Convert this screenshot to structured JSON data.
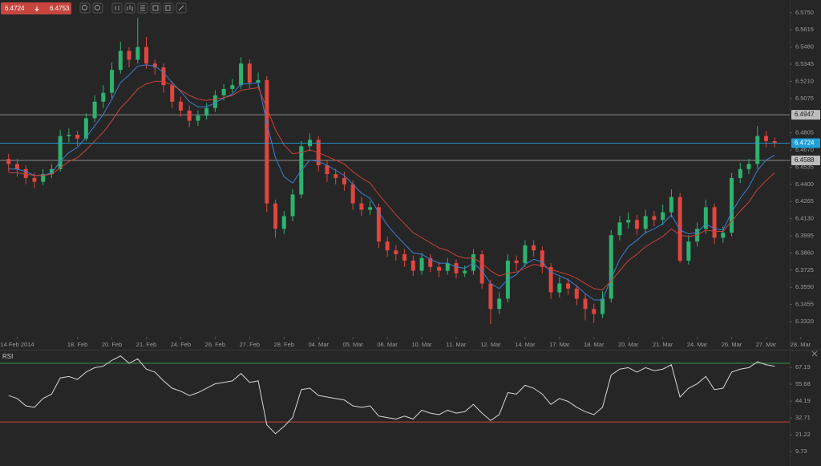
{
  "toolbar": {
    "bid": 6.4724,
    "ask": 6.4753
  },
  "chart_data": [
    {
      "type": "candlestick",
      "x": [
        0,
        1,
        2,
        3,
        4,
        5,
        6,
        7,
        8,
        9,
        10,
        11,
        12,
        13,
        14,
        15,
        16,
        17,
        18,
        19,
        20,
        21,
        22,
        23,
        24,
        25,
        26,
        27,
        28,
        29,
        30,
        31,
        32,
        33,
        34,
        35,
        36,
        37,
        38,
        39,
        40,
        41,
        42,
        43,
        44,
        45,
        46,
        47,
        48,
        49,
        50,
        51,
        52,
        53,
        54,
        55,
        56,
        57,
        58,
        59,
        60,
        61,
        62,
        63,
        64,
        65,
        66,
        67,
        68,
        69,
        70,
        71,
        72,
        73,
        74,
        75,
        76,
        77,
        78,
        79,
        80,
        81,
        82,
        83,
        84,
        85,
        86,
        87,
        88,
        89
      ],
      "open": [
        6.46,
        6.456,
        6.452,
        6.445,
        6.442,
        6.448,
        6.452,
        6.478,
        6.479,
        6.476,
        6.492,
        6.505,
        6.512,
        6.53,
        6.545,
        6.538,
        6.548,
        6.535,
        6.532,
        6.518,
        6.505,
        6.498,
        6.49,
        6.494,
        6.5,
        6.51,
        6.515,
        6.518,
        6.535,
        6.52,
        6.522,
        6.425,
        6.405,
        6.415,
        6.432,
        6.47,
        6.475,
        6.455,
        6.448,
        6.445,
        6.44,
        6.425,
        6.42,
        6.422,
        6.395,
        6.388,
        6.385,
        6.38,
        6.372,
        6.382,
        6.375,
        6.372,
        6.378,
        6.37,
        6.372,
        6.385,
        6.362,
        6.342,
        6.35,
        6.38,
        6.378,
        6.392,
        6.388,
        6.375,
        6.355,
        6.362,
        6.358,
        6.35,
        6.342,
        6.338,
        6.35,
        6.4,
        6.41,
        6.412,
        6.405,
        6.415,
        6.412,
        6.418,
        6.43,
        6.38,
        6.395,
        6.405,
        6.422,
        6.398,
        6.402,
        6.445,
        6.452,
        6.456,
        6.478,
        6.474
      ],
      "high": [
        6.464,
        6.46,
        6.455,
        6.449,
        6.452,
        6.456,
        6.483,
        6.484,
        6.482,
        6.496,
        6.51,
        6.518,
        6.536,
        6.552,
        6.548,
        6.571,
        6.556,
        6.538,
        6.535,
        6.521,
        6.509,
        6.502,
        6.498,
        6.504,
        6.514,
        6.519,
        6.523,
        6.54,
        6.538,
        6.528,
        6.525,
        6.428,
        6.419,
        6.436,
        6.474,
        6.48,
        6.478,
        6.459,
        6.452,
        6.45,
        6.443,
        6.43,
        6.427,
        6.425,
        6.399,
        6.392,
        6.389,
        6.384,
        6.386,
        6.385,
        6.379,
        6.382,
        6.381,
        6.376,
        6.389,
        6.388,
        6.365,
        6.355,
        6.385,
        6.384,
        6.396,
        6.396,
        6.391,
        6.378,
        6.367,
        6.366,
        6.361,
        6.354,
        6.346,
        6.356,
        6.404,
        6.415,
        6.418,
        6.416,
        6.42,
        6.419,
        6.424,
        6.436,
        6.433,
        6.4,
        6.41,
        6.428,
        6.425,
        6.407,
        6.449,
        6.457,
        6.46,
        6.486,
        6.482,
        6.477
      ],
      "low": [
        6.45,
        6.446,
        6.44,
        6.437,
        6.439,
        6.445,
        6.45,
        6.473,
        6.47,
        6.474,
        6.489,
        6.5,
        6.508,
        6.527,
        6.532,
        6.535,
        6.531,
        6.526,
        6.512,
        6.5,
        6.493,
        6.485,
        6.486,
        6.491,
        6.497,
        6.506,
        6.512,
        6.515,
        6.515,
        6.516,
        6.418,
        6.398,
        6.401,
        6.411,
        6.429,
        6.466,
        6.45,
        6.442,
        6.44,
        6.435,
        6.42,
        6.415,
        6.416,
        6.39,
        6.383,
        6.38,
        6.375,
        6.368,
        6.369,
        6.371,
        6.367,
        6.369,
        6.366,
        6.367,
        6.369,
        6.358,
        6.33,
        6.338,
        6.347,
        6.372,
        6.375,
        6.383,
        6.37,
        6.35,
        6.351,
        6.353,
        6.345,
        6.333,
        6.331,
        6.335,
        6.347,
        6.396,
        6.405,
        6.4,
        6.401,
        6.407,
        6.408,
        6.414,
        6.378,
        6.377,
        6.391,
        6.401,
        6.393,
        6.394,
        6.399,
        6.441,
        6.448,
        6.452,
        6.469,
        6.469
      ],
      "close": [
        6.456,
        6.452,
        6.445,
        6.442,
        6.448,
        6.452,
        6.478,
        6.479,
        6.476,
        6.492,
        6.505,
        6.512,
        6.53,
        6.545,
        6.538,
        6.548,
        6.535,
        6.532,
        6.518,
        6.505,
        6.498,
        6.49,
        6.494,
        6.5,
        6.51,
        6.515,
        6.518,
        6.535,
        6.52,
        6.522,
        6.425,
        6.405,
        6.415,
        6.432,
        6.47,
        6.475,
        6.455,
        6.448,
        6.445,
        6.44,
        6.425,
        6.42,
        6.422,
        6.395,
        6.388,
        6.385,
        6.38,
        6.372,
        6.382,
        6.375,
        6.372,
        6.378,
        6.37,
        6.372,
        6.385,
        6.362,
        6.342,
        6.35,
        6.38,
        6.378,
        6.392,
        6.388,
        6.375,
        6.355,
        6.362,
        6.358,
        6.35,
        6.342,
        6.338,
        6.35,
        6.4,
        6.41,
        6.412,
        6.405,
        6.415,
        6.412,
        6.418,
        6.43,
        6.38,
        6.395,
        6.405,
        6.422,
        6.398,
        6.402,
        6.445,
        6.452,
        6.456,
        6.478,
        6.474,
        6.4724
      ],
      "up_color": "#2db36f",
      "down_color": "#e0463e",
      "lines": [
        {
          "color": "#3b7fd4",
          "values": [
            6.452,
            6.452,
            6.45,
            6.447,
            6.447,
            6.449,
            6.458,
            6.465,
            6.469,
            6.477,
            6.486,
            6.495,
            6.507,
            6.52,
            6.526,
            6.533,
            6.534,
            6.533,
            6.528,
            6.52,
            6.513,
            6.505,
            6.501,
            6.501,
            6.504,
            6.508,
            6.511,
            6.519,
            6.519,
            6.52,
            6.488,
            6.461,
            6.446,
            6.441,
            6.451,
            6.459,
            6.458,
            6.455,
            6.451,
            6.447,
            6.44,
            6.433,
            6.429,
            6.418,
            6.408,
            6.4,
            6.393,
            6.386,
            6.385,
            6.381,
            6.378,
            6.378,
            6.375,
            6.374,
            6.378,
            6.372,
            6.362,
            6.358,
            6.365,
            6.369,
            6.377,
            6.381,
            6.379,
            6.371,
            6.368,
            6.365,
            6.36,
            6.354,
            6.349,
            6.349,
            6.366,
            6.381,
            6.391,
            6.396,
            6.402,
            6.405,
            6.409,
            6.416,
            6.404,
            6.401,
            6.402,
            6.409,
            6.405,
            6.404,
            6.418,
            6.429,
            6.438,
            6.451,
            6.459,
            6.463
          ]
        },
        {
          "color": "#c9423a",
          "values": [
            6.449,
            6.449,
            6.448,
            6.447,
            6.447,
            6.448,
            6.453,
            6.458,
            6.461,
            6.467,
            6.474,
            6.481,
            6.49,
            6.5,
            6.507,
            6.515,
            6.519,
            6.521,
            6.521,
            6.518,
            6.514,
            6.51,
            6.507,
            6.506,
            6.507,
            6.508,
            6.51,
            6.514,
            6.515,
            6.516,
            6.5,
            6.483,
            6.471,
            6.464,
            6.465,
            6.467,
            6.465,
            6.462,
            6.459,
            6.456,
            6.45,
            6.445,
            6.441,
            6.432,
            6.424,
            6.416,
            6.409,
            6.402,
            6.398,
            6.394,
            6.39,
            6.388,
            6.384,
            6.382,
            6.382,
            6.378,
            6.372,
            6.368,
            6.37,
            6.371,
            6.374,
            6.377,
            6.376,
            6.373,
            6.371,
            6.369,
            6.366,
            6.362,
            6.358,
            6.357,
            6.364,
            6.372,
            6.38,
            6.385,
            6.391,
            6.395,
            6.399,
            6.405,
            6.4,
            6.399,
            6.4,
            6.404,
            6.403,
            6.403,
            6.411,
            6.419,
            6.426,
            6.436,
            6.443,
            6.449
          ]
        }
      ],
      "levels": [
        {
          "value": 6.4947,
          "color": "#8a8a8a"
        },
        {
          "value": 6.4588,
          "color": "#8a8a8a"
        }
      ],
      "last": 6.4724,
      "last_color": "#1e9fd9",
      "xlim": [
        -1,
        90.75
      ],
      "ylim": [
        6.32,
        6.585
      ],
      "yticks": [
        {
          "value": 6.575,
          "label": "6.5750"
        },
        6.5615,
        {
          "value": 6.548,
          "label": "6.5480"
        },
        6.5345,
        {
          "value": 6.521,
          "label": "6.5210"
        },
        6.5075,
        6.4805,
        {
          "value": 6.467,
          "label": "6.4670"
        },
        6.4535,
        {
          "value": 6.44,
          "label": "6.4400"
        },
        6.4265,
        {
          "value": 6.413,
          "label": "6.4130"
        },
        6.3995,
        {
          "value": 6.386,
          "label": "6.3860"
        },
        6.3725,
        {
          "value": 6.359,
          "label": "6.3590"
        },
        6.3455,
        {
          "value": 6.332,
          "label": "6.3320"
        }
      ],
      "xticks": [
        {
          "value": 1,
          "label": "14 Feb 2014"
        },
        {
          "value": 8,
          "label": "18. Feb"
        },
        {
          "value": 12,
          "label": "20. Feb"
        },
        {
          "value": 16,
          "label": "21. Feb"
        },
        {
          "value": 20,
          "label": "24. Feb"
        },
        {
          "value": 24,
          "label": "26. Feb"
        },
        {
          "value": 28,
          "label": "27. Feb"
        },
        {
          "value": 32,
          "label": "28. Feb"
        },
        {
          "value": 36,
          "label": "04. Mar"
        },
        {
          "value": 40,
          "label": "05. Mar"
        },
        {
          "value": 44,
          "label": "06. Mar"
        },
        {
          "value": 48,
          "label": "10. Mar"
        },
        {
          "value": 52,
          "label": "11. Mar"
        },
        {
          "value": 56,
          "label": "12. Mar"
        },
        {
          "value": 60,
          "label": "14. Mar"
        },
        {
          "value": 64,
          "label": "17. Mar"
        },
        {
          "value": 68,
          "label": "18. Mar"
        },
        {
          "value": 72,
          "label": "20. Mar"
        },
        {
          "value": 76,
          "label": "21. Mar"
        },
        {
          "value": 80,
          "label": "24. Mar"
        },
        {
          "value": 84,
          "label": "26. Mar"
        },
        {
          "value": 88,
          "label": "27. Mar"
        },
        {
          "value": 92,
          "label": "28. Mar"
        }
      ]
    },
    {
      "type": "line",
      "title": "RSI",
      "x": [
        0,
        1,
        2,
        3,
        4,
        5,
        6,
        7,
        8,
        9,
        10,
        11,
        12,
        13,
        14,
        15,
        16,
        17,
        18,
        19,
        20,
        21,
        22,
        23,
        24,
        25,
        26,
        27,
        28,
        29,
        30,
        31,
        32,
        33,
        34,
        35,
        36,
        37,
        38,
        39,
        40,
        41,
        42,
        43,
        44,
        45,
        46,
        47,
        48,
        49,
        50,
        51,
        52,
        53,
        54,
        55,
        56,
        57,
        58,
        59,
        60,
        61,
        62,
        63,
        64,
        65,
        66,
        67,
        68,
        69,
        70,
        71,
        72,
        73,
        74,
        75,
        76,
        77,
        78,
        79,
        80,
        81,
        82,
        83,
        84,
        85,
        86,
        87,
        88,
        89
      ],
      "values": [
        48,
        46,
        41,
        40,
        46,
        49,
        60,
        61,
        59,
        64,
        67,
        68,
        72,
        75,
        70,
        73,
        66,
        64,
        58,
        53,
        51,
        48,
        50,
        53,
        56,
        57,
        58,
        63,
        57,
        58,
        28,
        22,
        27,
        33,
        52,
        53,
        48,
        47,
        46,
        45,
        41,
        40,
        41,
        34,
        33,
        32,
        34,
        32,
        38,
        36,
        35,
        38,
        36,
        37,
        42,
        36,
        31,
        35,
        50,
        49,
        55,
        53,
        49,
        42,
        46,
        44,
        40,
        37,
        35,
        40,
        62,
        66,
        67,
        64,
        67,
        65,
        66,
        69,
        47,
        53,
        56,
        61,
        52,
        53,
        64,
        66,
        67,
        71,
        69,
        68
      ],
      "color": "#d6d6d6",
      "levels": [
        {
          "value": 70,
          "color": "#3c9a4e"
        },
        {
          "value": 30,
          "color": "#c6453c"
        }
      ],
      "xlim": [
        -1,
        90.75
      ],
      "ylim": [
        0,
        78.7
      ],
      "yticks": [
        67.19,
        55.68,
        44.19,
        32.71,
        21.22,
        9.73
      ]
    }
  ]
}
